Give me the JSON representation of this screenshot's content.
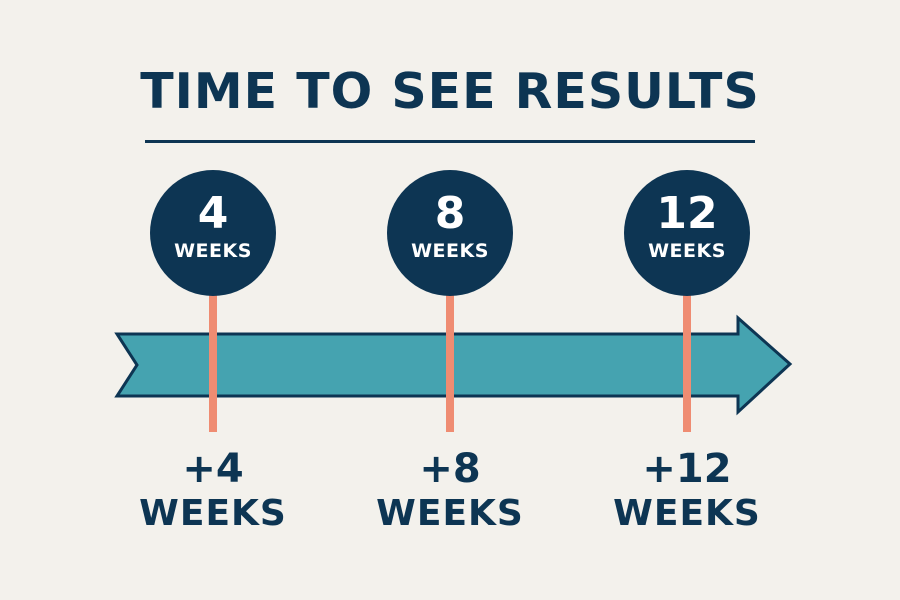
{
  "title": "TIME TO SEE RESULTS",
  "milestones": [
    {
      "number": "4",
      "unit": "WEEKS",
      "label_plus": "+4",
      "label_unit": "WEEKS"
    },
    {
      "number": "8",
      "unit": "WEEKS",
      "label_plus": "+8",
      "label_unit": "WEEKS"
    },
    {
      "number": "12",
      "unit": "WEEKS",
      "label_plus": "+12",
      "label_unit": "WEEKS"
    }
  ],
  "colors": {
    "background": "#f3f1ec",
    "navy": "#0d3553",
    "arrow_teal": "#45a3b0",
    "marker_coral": "#ef8c72"
  }
}
